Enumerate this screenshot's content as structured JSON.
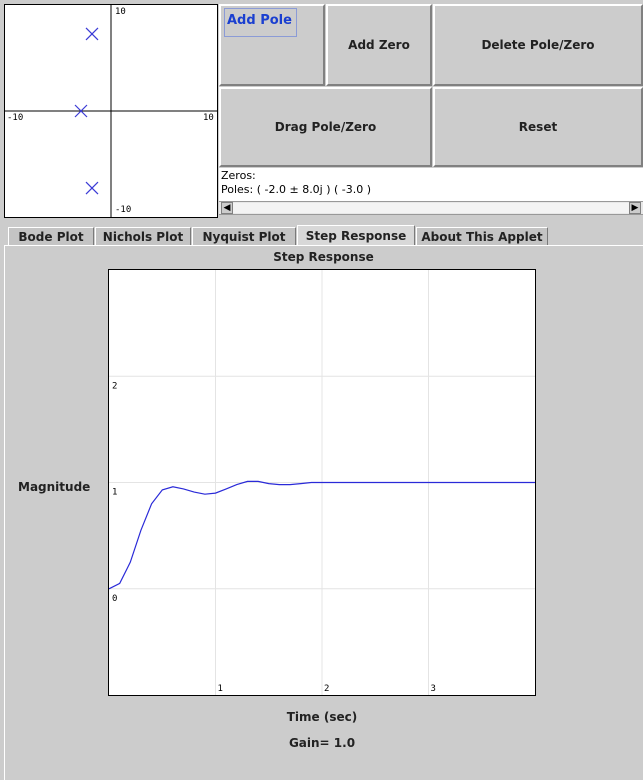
{
  "pz_plot": {
    "axis_labels": {
      "y_top": "10",
      "y_bottom": "-10",
      "x_left": "-10",
      "x_right": "10"
    },
    "poles": [
      {
        "re": -2.0,
        "im": 8.0
      },
      {
        "re": -3.0,
        "im": 0.0
      },
      {
        "re": -2.0,
        "im": -8.0
      }
    ],
    "marker_color": "#3b3bd6"
  },
  "buttons": {
    "add_pole": "Add Pole",
    "add_zero": "Add Zero",
    "delete_pole_zero": "Delete Pole/Zero",
    "drag_pole_zero": "Drag Pole/Zero",
    "reset": "Reset"
  },
  "info": {
    "zeros_line": "Zeros:",
    "poles_line": "Poles: ( -2.0 ± 8.0j ) ( -3.0 )"
  },
  "tabs": [
    {
      "label": "Bode Plot",
      "selected": false
    },
    {
      "label": "Nichols Plot",
      "selected": false
    },
    {
      "label": "Nyquist Plot",
      "selected": false
    },
    {
      "label": "Step Response",
      "selected": true
    },
    {
      "label": "About This Applet",
      "selected": false
    }
  ],
  "step_plot": {
    "title": "Step Response",
    "ylabel": "Magnitude",
    "xlabel": "Time (sec)",
    "gain_text": "Gain= 1.0"
  },
  "chart_data": {
    "type": "line",
    "title": "Step Response",
    "xlabel": "Time (sec)",
    "ylabel": "Magnitude",
    "xlim": [
      0,
      4
    ],
    "ylim": [
      -1,
      3
    ],
    "x_ticks": [
      "1",
      "2",
      "3"
    ],
    "y_ticks": [
      "0",
      "1",
      "2"
    ],
    "grid": true,
    "line_color": "#2a2ad8",
    "series": [
      {
        "x": [
          0,
          0.1,
          0.2,
          0.3,
          0.4,
          0.5,
          0.6,
          0.7,
          0.8,
          0.9,
          1.0,
          1.1,
          1.2,
          1.3,
          1.4,
          1.5,
          1.6,
          1.7,
          1.8,
          1.9,
          2.0,
          2.5,
          3.0,
          3.5,
          4.0
        ],
        "y": [
          0,
          0.05,
          0.25,
          0.55,
          0.8,
          0.93,
          0.96,
          0.94,
          0.91,
          0.89,
          0.9,
          0.94,
          0.98,
          1.01,
          1.01,
          0.99,
          0.98,
          0.98,
          0.99,
          1.0,
          1.0,
          1.0,
          1.0,
          1.0,
          1.0
        ]
      }
    ]
  }
}
